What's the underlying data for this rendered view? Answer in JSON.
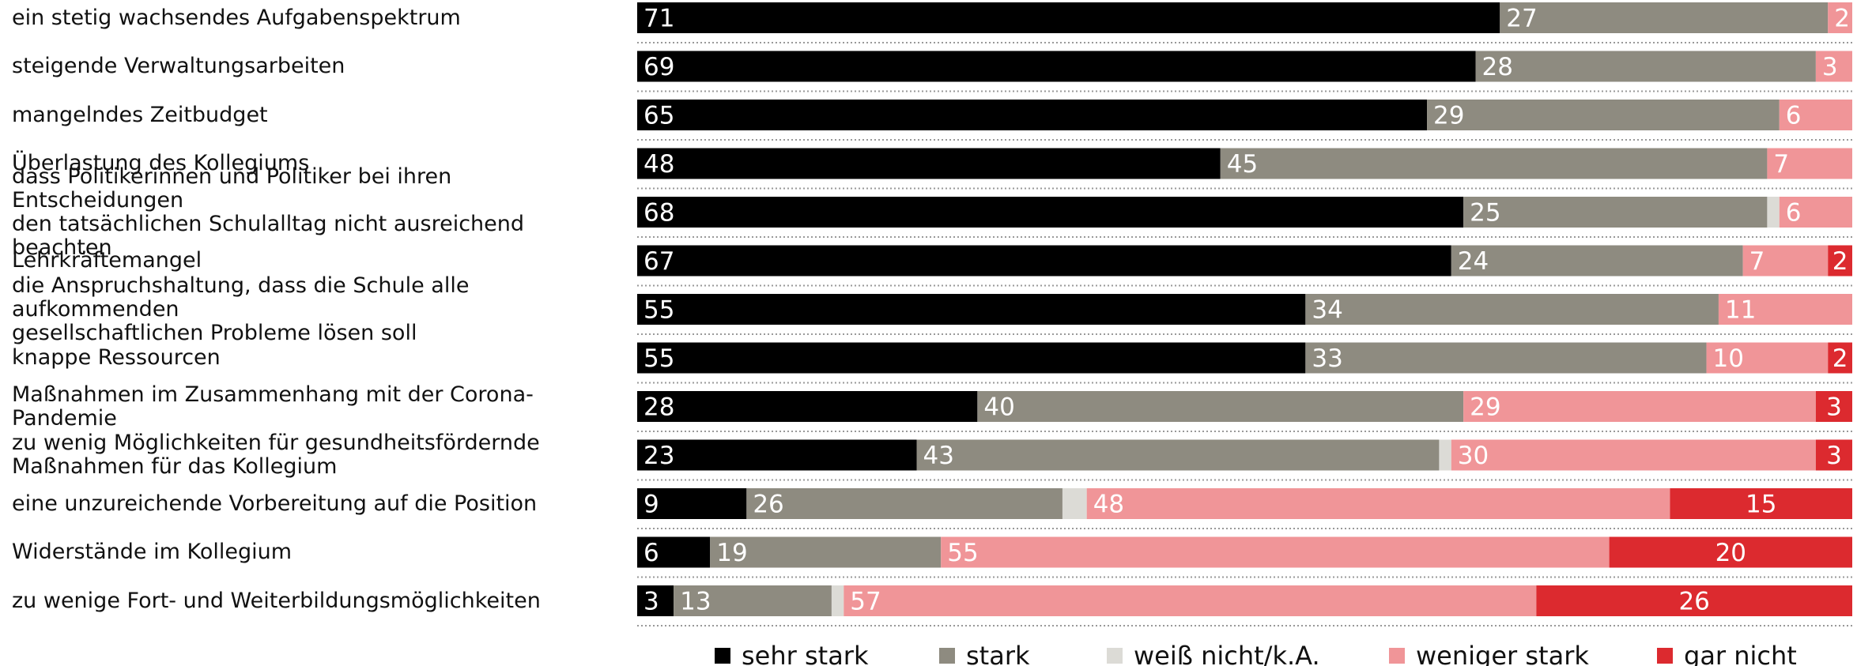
{
  "chart_data": {
    "type": "stacked-bar-horizontal",
    "categories": [
      "ein stetig wachsendes Aufgabenspektrum",
      "steigende Verwaltungsarbeiten",
      "mangelndes Zeitbudget",
      "Überlastung des Kollegiums",
      "dass Politikerinnen und Politiker bei ihren Entscheidungen\nden tatsächlichen Schulalltag nicht ausreichend beachten",
      "Lehrkräftemangel",
      "die Anspruchshaltung, dass die Schule alle aufkommenden\ngesellschaftlichen Probleme lösen soll",
      "knappe Ressourcen",
      "Maßnahmen im Zusammenhang mit der Corona-Pandemie",
      "zu wenig Möglichkeiten für gesundheitsfördernde\nMaßnahmen für das Kollegium",
      "eine unzureichende Vorbereitung auf die Position",
      "Widerstände im Kollegium",
      "zu wenige Fort- und Weiterbildungsmöglichkeiten"
    ],
    "series": [
      {
        "name": "sehr stark",
        "color": "#000000",
        "label_align": "start",
        "values": [
          71,
          69,
          65,
          48,
          68,
          67,
          55,
          55,
          28,
          23,
          9,
          6,
          3
        ]
      },
      {
        "name": "stark",
        "color": "#8e8b80",
        "label_align": "start",
        "values": [
          27,
          28,
          29,
          45,
          25,
          24,
          34,
          33,
          40,
          43,
          26,
          19,
          13
        ]
      },
      {
        "name": "weiß nicht/k.A.",
        "color": "#dcdbd6",
        "show_labels": false,
        "values": [
          0,
          0,
          0,
          0,
          1,
          0,
          0,
          0,
          0,
          1,
          2,
          0,
          1
        ]
      },
      {
        "name": "weniger stark",
        "color": "#f09598",
        "label_align": "start",
        "values": [
          2,
          3,
          6,
          7,
          6,
          7,
          11,
          10,
          29,
          30,
          48,
          55,
          57
        ]
      },
      {
        "name": "gar nicht",
        "color": "#dc2a2f",
        "label_align": "middle",
        "values": [
          0,
          0,
          0,
          0,
          0,
          2,
          0,
          2,
          3,
          3,
          15,
          20,
          26
        ]
      }
    ],
    "legend": "bottom"
  }
}
